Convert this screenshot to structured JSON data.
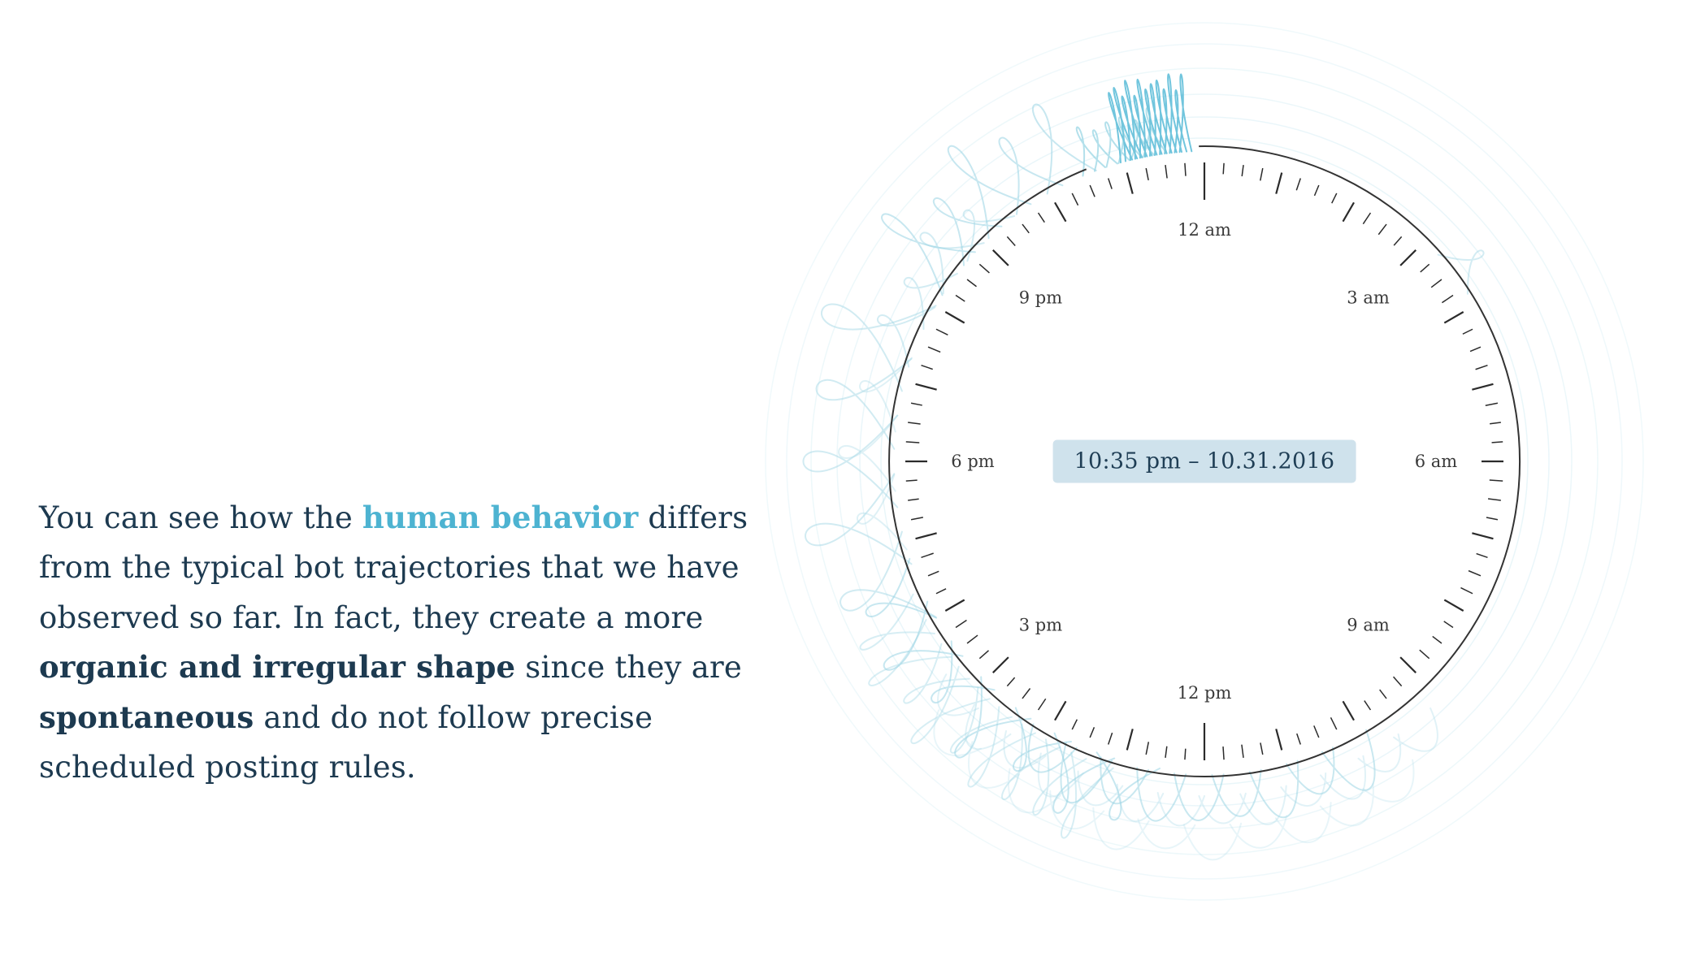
{
  "annotation": {
    "segments": [
      {
        "text": "You can see how the ",
        "style": "normal"
      },
      {
        "text": "human behavior",
        "style": "highlight"
      },
      {
        "text": " differs from the typical bot trajectories that we have observed so far. In fact, they create a more ",
        "style": "normal"
      },
      {
        "text": "organic and irregular shape",
        "style": "bold"
      },
      {
        "text": " since they are ",
        "style": "normal"
      },
      {
        "text": "spontaneous",
        "style": "bold"
      },
      {
        "text": " and do not follow precise scheduled posting rules.",
        "style": "normal"
      }
    ]
  },
  "chart_data": {
    "type": "radial-clock",
    "description": "24-hour radial clock showing organic human posting trajectory loops",
    "hour_labels": [
      {
        "angle": 0,
        "label": "12 am"
      },
      {
        "angle": 45,
        "label": "3 am"
      },
      {
        "angle": 90,
        "label": "6 am"
      },
      {
        "angle": 135,
        "label": "9 am"
      },
      {
        "angle": 180,
        "label": "12 pm"
      },
      {
        "angle": 225,
        "label": "3 pm"
      },
      {
        "angle": 270,
        "label": "6 pm"
      },
      {
        "angle": 315,
        "label": "9 pm"
      }
    ],
    "tooltip": {
      "time": "10:35 pm",
      "date": "10.31.2016",
      "text": "10:35 pm – 10.31.2016"
    },
    "ring": {
      "r": 388,
      "gap_from": -22,
      "gap_to": -1
    },
    "ticks": {
      "count": 96,
      "hour_every": 4,
      "outer_r": 368,
      "minor_len": 15,
      "hour_len": 27,
      "long_ticks": [
        0,
        48
      ],
      "long_len": 46,
      "label_r": 285
    },
    "colors": {
      "text": "#1d3a50",
      "highlight": "#4db3d1",
      "tooltip_bg": "#cfe2ec",
      "ring": "#333333",
      "tick": "#2b2b2b",
      "label": "#3a3a3a",
      "loop_faint": "#b5e0ec"
    },
    "decor": {
      "circles": [
        {
          "r": 398,
          "o": 0.3
        },
        {
          "r": 424,
          "o": 0.28
        },
        {
          "r": 452,
          "o": 0.26
        },
        {
          "r": 484,
          "o": 0.24
        },
        {
          "r": 514,
          "o": 0.22
        },
        {
          "r": 540,
          "o": 0.2
        }
      ],
      "garlands": [
        {
          "from": -15,
          "to": -3,
          "count": 13,
          "width": 1.1,
          "base": 382,
          "tip": 498,
          "jitter": 14,
          "cross": true,
          "color": "#4db7d4",
          "opacity": 0.8,
          "sw": 2
        },
        {
          "from": -22,
          "to": -8,
          "count": 6,
          "width": 2.2,
          "base": 382,
          "tip": 452,
          "jitter": 10,
          "cross": true,
          "color": "#74c6db",
          "opacity": 0.55,
          "sw": 2
        },
        {
          "from": -56,
          "to": -22,
          "count": 5,
          "width": 5.0,
          "base": 382,
          "tip": 520,
          "jitter": 25,
          "cross": true,
          "color": "#8fd0e1",
          "opacity": 0.5,
          "sw": 2
        },
        {
          "from": -70,
          "to": -40,
          "count": 4,
          "width": 6.0,
          "base": 382,
          "tip": 462,
          "jitter": 15,
          "cross": true,
          "color": "#9dd5e4",
          "opacity": 0.45,
          "sw": 2
        },
        {
          "from": 243,
          "to": 297,
          "count": 5,
          "width": 8.5,
          "base": 382,
          "tip": 545,
          "jitter": 22,
          "cross": true,
          "color": "#a3d8e6",
          "opacity": 0.5,
          "sw": 2
        },
        {
          "from": 255,
          "to": 288,
          "count": 3,
          "width": 7.0,
          "base": 382,
          "tip": 470,
          "jitter": 12,
          "cross": true,
          "color": "#aedce8",
          "opacity": 0.4,
          "sw": 2
        },
        {
          "from": 190,
          "to": 250,
          "count": 7,
          "width": 6.0,
          "base": 382,
          "tip": 492,
          "jitter": 20,
          "cross": true,
          "color": "#8fd0e1",
          "opacity": 0.5,
          "sw": 2
        },
        {
          "from": 198,
          "to": 244,
          "count": 9,
          "width": 4.0,
          "base": 394,
          "tip": 520,
          "jitter": 18,
          "cross": true,
          "color": "#9bd4e4",
          "opacity": 0.4,
          "sw": 2
        },
        {
          "from": 150,
          "to": 212,
          "count": 9,
          "width": 4.5,
          "base": 386,
          "tip": 462,
          "jitter": 12,
          "cross": false,
          "color": "#93d2e2",
          "opacity": 0.5,
          "sw": 2
        },
        {
          "from": 138,
          "to": 230,
          "count": 13,
          "width": 4.0,
          "base": 412,
          "tip": 462,
          "jitter": 8,
          "cross": false,
          "color": "#a8dae7",
          "opacity": 0.35,
          "sw": 2
        },
        {
          "from": 146,
          "to": 226,
          "count": 11,
          "width": 4.5,
          "base": 448,
          "tip": 498,
          "jitter": 8,
          "cross": false,
          "color": "#b4dfea",
          "opacity": 0.3,
          "sw": 2
        },
        {
          "from": 48,
          "to": 58,
          "count": 1,
          "width": 4.5,
          "base": 384,
          "tip": 448,
          "jitter": 0,
          "cross": true,
          "color": "#a8dae7",
          "opacity": 0.5,
          "sw": 2
        }
      ]
    }
  }
}
